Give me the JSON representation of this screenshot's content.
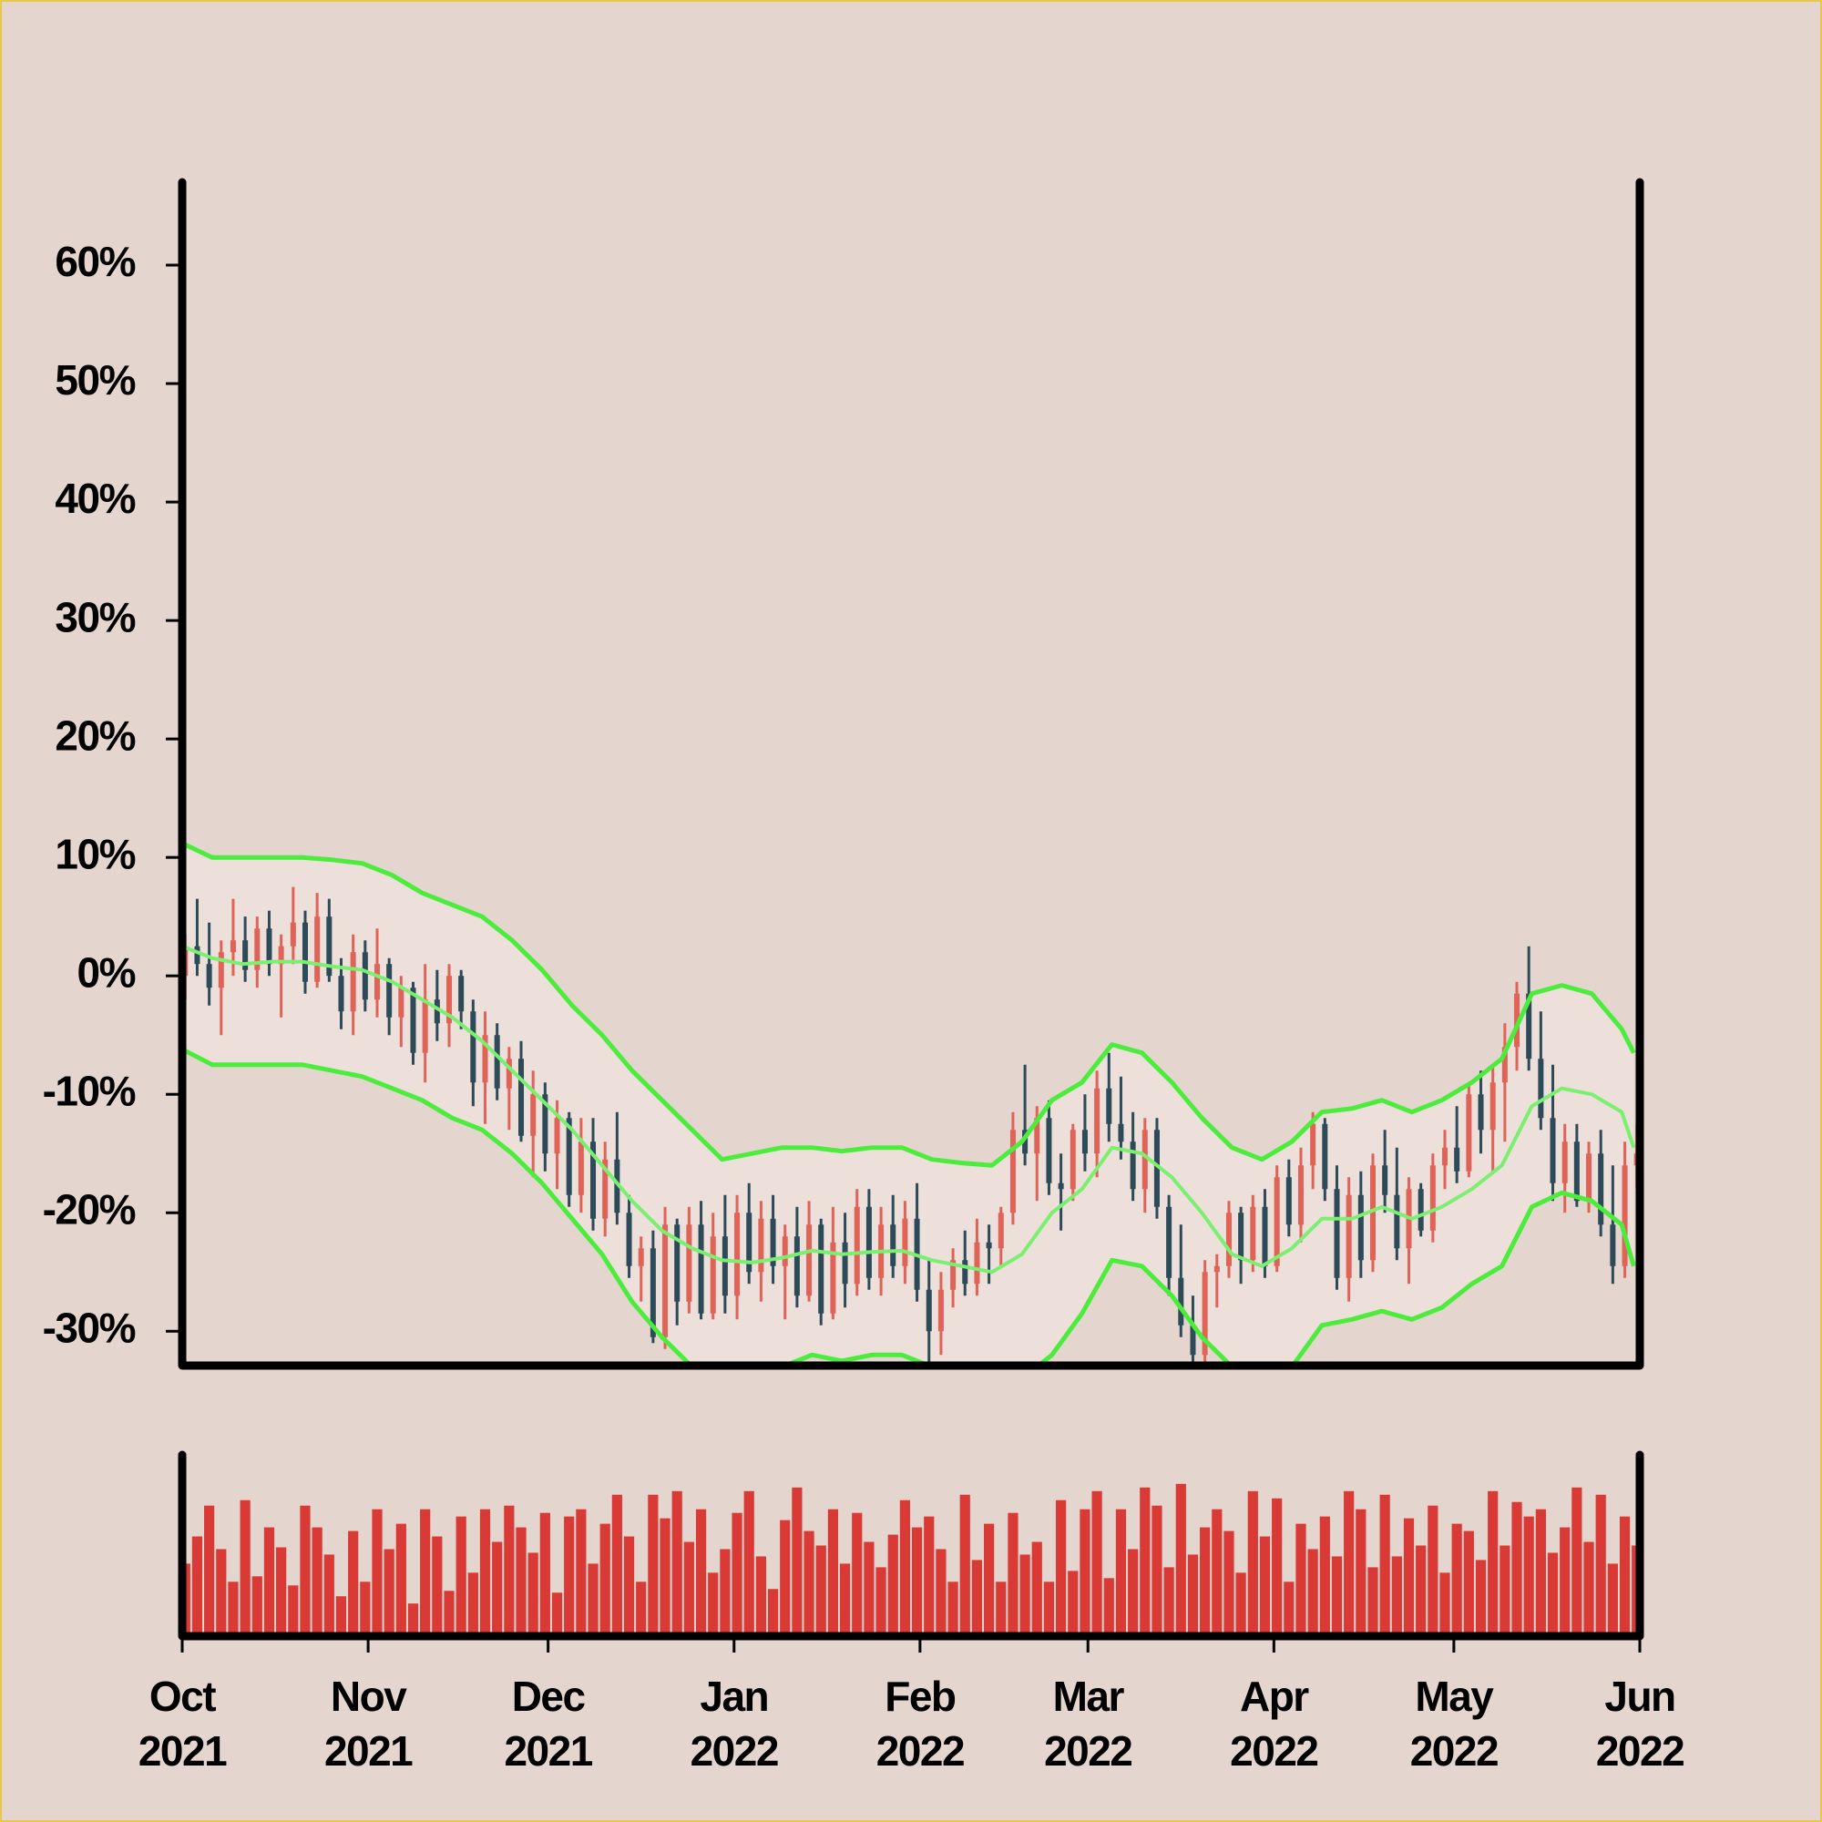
{
  "chart_data": {
    "type": "ohlc",
    "x": [
      "2021-10-01",
      "2021-10-03",
      "2021-10-05",
      "2021-10-07",
      "2021-10-09",
      "2021-10-11",
      "2021-10-13",
      "2021-10-15",
      "2021-10-17",
      "2021-10-19",
      "2021-10-21",
      "2021-10-23",
      "2021-10-25",
      "2021-10-27",
      "2021-10-29",
      "2021-10-31",
      "2021-11-02",
      "2021-11-04",
      "2021-11-06",
      "2021-11-08",
      "2021-11-10",
      "2021-11-12",
      "2021-11-14",
      "2021-11-16",
      "2021-11-18",
      "2021-11-20",
      "2021-11-22",
      "2021-11-24",
      "2021-11-26",
      "2021-11-28",
      "2021-11-30",
      "2021-12-02",
      "2021-12-04",
      "2021-12-06",
      "2021-12-08",
      "2021-12-10",
      "2021-12-12",
      "2021-12-14",
      "2021-12-16",
      "2021-12-18",
      "2021-12-20",
      "2021-12-22",
      "2021-12-24",
      "2021-12-26",
      "2021-12-28",
      "2021-12-30",
      "2022-01-01",
      "2022-01-03",
      "2022-01-05",
      "2022-01-07",
      "2022-01-09",
      "2022-01-11",
      "2022-01-13",
      "2022-01-15",
      "2022-01-17",
      "2022-01-19",
      "2022-01-21",
      "2022-01-23",
      "2022-01-25",
      "2022-01-27",
      "2022-01-29",
      "2022-01-31",
      "2022-02-02",
      "2022-02-04",
      "2022-02-06",
      "2022-02-08",
      "2022-02-10",
      "2022-02-12",
      "2022-02-14",
      "2022-02-16",
      "2022-02-18",
      "2022-02-20",
      "2022-02-22",
      "2022-02-24",
      "2022-02-26",
      "2022-02-28",
      "2022-03-02",
      "2022-03-04",
      "2022-03-06",
      "2022-03-08",
      "2022-03-10",
      "2022-03-12",
      "2022-03-14",
      "2022-03-16",
      "2022-03-18",
      "2022-03-20",
      "2022-03-22",
      "2022-03-24",
      "2022-03-26",
      "2022-03-28",
      "2022-03-30",
      "2022-04-01",
      "2022-04-03",
      "2022-04-05",
      "2022-04-07",
      "2022-04-09",
      "2022-04-11",
      "2022-04-13",
      "2022-04-15",
      "2022-04-17",
      "2022-04-19",
      "2022-04-21",
      "2022-04-23",
      "2022-04-25",
      "2022-04-27",
      "2022-04-29",
      "2022-05-01",
      "2022-05-03",
      "2022-05-05",
      "2022-05-07",
      "2022-05-09",
      "2022-05-11",
      "2022-05-13",
      "2022-05-15",
      "2022-05-17",
      "2022-05-19",
      "2022-05-21",
      "2022-05-23",
      "2022-05-25",
      "2022-05-27",
      "2022-05-29",
      "2022-05-31"
    ],
    "ohlc": [
      [
        0,
        3.5,
        -2,
        2.5
      ],
      [
        2.5,
        6.5,
        0,
        1
      ],
      [
        1,
        4.5,
        -2.5,
        -1
      ],
      [
        -1,
        3,
        -5,
        2
      ],
      [
        2,
        6.5,
        0,
        3
      ],
      [
        3,
        5,
        -0.5,
        0.5
      ],
      [
        0.5,
        5,
        -1,
        4
      ],
      [
        4,
        5.5,
        0,
        1
      ],
      [
        1,
        3.5,
        -3.5,
        2.5
      ],
      [
        2.5,
        7.5,
        1,
        4.5
      ],
      [
        4.5,
        5.5,
        -1.5,
        -0.5
      ],
      [
        -0.5,
        7,
        -1,
        5
      ],
      [
        5,
        6.5,
        -0.5,
        0
      ],
      [
        0,
        1.5,
        -4.5,
        -3
      ],
      [
        -3,
        3.5,
        -5,
        2
      ],
      [
        2,
        3,
        -3,
        -2
      ],
      [
        -2,
        4,
        -3.5,
        1
      ],
      [
        1,
        1.5,
        -5,
        -3.5
      ],
      [
        -3.5,
        0,
        -6,
        -1
      ],
      [
        -1,
        -0.5,
        -7.5,
        -6.5
      ],
      [
        -6.5,
        1,
        -9,
        -2
      ],
      [
        -2,
        0.5,
        -5.5,
        -4
      ],
      [
        -4,
        1,
        -6,
        0
      ],
      [
        0,
        0.5,
        -4.5,
        -3
      ],
      [
        -3,
        -2,
        -11,
        -9
      ],
      [
        -9,
        -3,
        -12.5,
        -5
      ],
      [
        -5,
        -4,
        -10.5,
        -9.5
      ],
      [
        -9.5,
        -6,
        -13,
        -7
      ],
      [
        -7,
        -5.5,
        -14,
        -13.5
      ],
      [
        -13.5,
        -8,
        -17,
        -10
      ],
      [
        -10,
        -9,
        -16.5,
        -15
      ],
      [
        -15,
        -10.5,
        -18,
        -12
      ],
      [
        -12,
        -11.5,
        -19.5,
        -18.5
      ],
      [
        -18.5,
        -12,
        -20,
        -14
      ],
      [
        -14,
        -12,
        -21.5,
        -20.5
      ],
      [
        -20.5,
        -14,
        -22,
        -15.5
      ],
      [
        -15.5,
        -11.5,
        -21,
        -20
      ],
      [
        -20,
        -18.5,
        -25.5,
        -24.5
      ],
      [
        -24.5,
        -22,
        -27.5,
        -23
      ],
      [
        -23,
        -21.5,
        -31,
        -30.5
      ],
      [
        -30.5,
        -19.5,
        -31.5,
        -21
      ],
      [
        -21,
        -20.5,
        -29.5,
        -27.5
      ],
      [
        -27.5,
        -19.5,
        -28.5,
        -21
      ],
      [
        -21,
        -19,
        -29,
        -28.5
      ],
      [
        -28.5,
        -20,
        -29,
        -22
      ],
      [
        -22,
        -18.5,
        -28.5,
        -27
      ],
      [
        -27,
        -18.5,
        -29,
        -20
      ],
      [
        -20,
        -17.5,
        -26,
        -25
      ],
      [
        -25,
        -19,
        -27.5,
        -20.5
      ],
      [
        -20.5,
        -18.5,
        -26,
        -24.5
      ],
      [
        -24.5,
        -21,
        -29,
        -22
      ],
      [
        -22,
        -19.5,
        -28,
        -27
      ],
      [
        -27,
        -19,
        -27.5,
        -21
      ],
      [
        -21,
        -20.5,
        -29.5,
        -28.5
      ],
      [
        -28.5,
        -19.5,
        -29,
        -22.5
      ],
      [
        -22.5,
        -20,
        -28,
        -26
      ],
      [
        -26,
        -18,
        -27,
        -19.5
      ],
      [
        -19.5,
        -18,
        -26.5,
        -25.5
      ],
      [
        -25.5,
        -19.5,
        -27,
        -21
      ],
      [
        -21,
        -18.5,
        -25.5,
        -24.5
      ],
      [
        -24.5,
        -19,
        -26,
        -20.5
      ],
      [
        -20.5,
        -17.5,
        -27.5,
        -26.5
      ],
      [
        -26.5,
        -24,
        -33,
        -30
      ],
      [
        -30,
        -25,
        -32,
        -26.5
      ],
      [
        -26.5,
        -23,
        -28,
        -24
      ],
      [
        -24,
        -21.5,
        -27,
        -26
      ],
      [
        -26,
        -20.5,
        -27,
        -22.5
      ],
      [
        -22.5,
        -21,
        -26,
        -23
      ],
      [
        -23,
        -19.5,
        -24.5,
        -20
      ],
      [
        -20,
        -11.5,
        -21,
        -13
      ],
      [
        -13,
        -7.5,
        -16,
        -15
      ],
      [
        -15,
        -11,
        -19,
        -12
      ],
      [
        -12,
        -10.5,
        -18.5,
        -17.5
      ],
      [
        -17.5,
        -15,
        -21.5,
        -18
      ],
      [
        -18,
        -12.5,
        -19,
        -13
      ],
      [
        -13,
        -10,
        -16.5,
        -15
      ],
      [
        -15,
        -8,
        -17,
        -9.5
      ],
      [
        -9.5,
        -6.5,
        -14,
        -12.5
      ],
      [
        -12.5,
        -8.5,
        -15.5,
        -14
      ],
      [
        -14,
        -11.5,
        -19,
        -18
      ],
      [
        -18,
        -12,
        -20,
        -13
      ],
      [
        -13,
        -12,
        -20.5,
        -19.5
      ],
      [
        -19.5,
        -18.5,
        -27,
        -25.5
      ],
      [
        -25.5,
        -21,
        -30.5,
        -29.5
      ],
      [
        -29.5,
        -27,
        -33.5,
        -32
      ],
      [
        -32,
        -24,
        -33.5,
        -25
      ],
      [
        -25,
        -23.5,
        -28,
        -24.5
      ],
      [
        -24.5,
        -19,
        -25.5,
        -20
      ],
      [
        -20,
        -19.5,
        -26,
        -24
      ],
      [
        -24,
        -18.5,
        -25,
        -19.5
      ],
      [
        -19.5,
        -18,
        -25.5,
        -24.5
      ],
      [
        -24.5,
        -16,
        -25,
        -17
      ],
      [
        -17,
        -15.5,
        -22,
        -21
      ],
      [
        -21,
        -14.5,
        -22.5,
        -16
      ],
      [
        -16,
        -11.5,
        -18,
        -12.5
      ],
      [
        -12.5,
        -12,
        -19,
        -18
      ],
      [
        -18,
        -16,
        -26.5,
        -25.5
      ],
      [
        -25.5,
        -17,
        -27.5,
        -18.5
      ],
      [
        -18.5,
        -16.5,
        -25.5,
        -24
      ],
      [
        -24,
        -15,
        -25,
        -16
      ],
      [
        -16,
        -13,
        -20,
        -18.5
      ],
      [
        -18.5,
        -14.5,
        -24,
        -23
      ],
      [
        -23,
        -17,
        -26,
        -18
      ],
      [
        -18,
        -17.5,
        -22,
        -21.5
      ],
      [
        -21.5,
        -15,
        -22.5,
        -16
      ],
      [
        -16,
        -13,
        -18,
        -14.5
      ],
      [
        -14.5,
        -11,
        -17.5,
        -16.5
      ],
      [
        -16.5,
        -9,
        -17,
        -10
      ],
      [
        -10,
        -8,
        -15,
        -13
      ],
      [
        -13,
        -7.5,
        -16.5,
        -9
      ],
      [
        -9,
        -4,
        -14,
        -6
      ],
      [
        -6,
        -0.5,
        -8,
        -1.5
      ],
      [
        -1.5,
        2.5,
        -8,
        -7
      ],
      [
        -7,
        -3,
        -13,
        -12
      ],
      [
        -12,
        -7.5,
        -19,
        -17.5
      ],
      [
        -17.5,
        -12.5,
        -20,
        -14
      ],
      [
        -14,
        -12.5,
        -19.5,
        -19
      ],
      [
        -19,
        -14,
        -20,
        -15
      ],
      [
        -15,
        -13,
        -22,
        -21
      ],
      [
        -21,
        -16,
        -26,
        -24.5
      ],
      [
        -24.5,
        -14,
        -25.5,
        -16
      ],
      [
        -16,
        -12.5,
        -18,
        -15
      ]
    ],
    "up_color": "#e06358",
    "down_color": "#2c4a58",
    "volume": [
      40,
      55,
      72,
      48,
      30,
      75,
      33,
      60,
      49,
      28,
      72,
      60,
      45,
      22,
      58,
      30,
      70,
      48,
      62,
      18,
      70,
      55,
      25,
      66,
      35,
      70,
      52,
      72,
      60,
      46,
      68,
      24,
      66,
      70,
      40,
      62,
      78,
      55,
      30,
      78,
      65,
      80,
      52,
      70,
      35,
      48,
      68,
      80,
      44,
      26,
      64,
      82,
      58,
      50,
      70,
      40,
      68,
      52,
      38,
      56,
      75,
      60,
      66,
      48,
      30,
      78,
      42,
      62,
      30,
      68,
      45,
      52,
      30,
      75,
      36,
      70,
      80,
      32,
      70,
      48,
      82,
      72,
      38,
      84,
      45,
      60,
      70,
      58,
      35,
      80,
      55,
      76,
      30,
      62,
      48,
      66,
      44,
      80,
      70,
      38,
      78,
      44,
      65,
      50,
      72,
      35,
      62,
      58,
      42,
      80,
      50,
      74,
      66,
      70,
      46,
      60,
      82,
      52,
      78,
      40,
      66,
      50
    ],
    "volume_color": "#d93a35",
    "volume_ylim": [
      0,
      100
    ],
    "bands": {
      "x": [
        "2021-10-01",
        "2021-10-06",
        "2021-10-11",
        "2021-10-16",
        "2021-10-21",
        "2021-10-26",
        "2021-10-31",
        "2021-11-05",
        "2021-11-10",
        "2021-11-15",
        "2021-11-20",
        "2021-11-25",
        "2021-11-30",
        "2021-12-05",
        "2021-12-10",
        "2021-12-15",
        "2021-12-20",
        "2021-12-25",
        "2021-12-30",
        "2022-01-04",
        "2022-01-09",
        "2022-01-14",
        "2022-01-19",
        "2022-01-24",
        "2022-01-29",
        "2022-02-03",
        "2022-02-08",
        "2022-02-13",
        "2022-02-18",
        "2022-02-23",
        "2022-02-28",
        "2022-03-05",
        "2022-03-10",
        "2022-03-15",
        "2022-03-20",
        "2022-03-25",
        "2022-03-30",
        "2022-04-04",
        "2022-04-09",
        "2022-04-14",
        "2022-04-19",
        "2022-04-24",
        "2022-04-29",
        "2022-05-04",
        "2022-05-09",
        "2022-05-14",
        "2022-05-19",
        "2022-05-24",
        "2022-05-29",
        "2022-05-31"
      ],
      "upper": [
        11.2,
        10,
        10,
        10,
        10,
        9.8,
        9.5,
        8.5,
        7,
        6,
        5,
        3,
        0.5,
        -2.5,
        -5,
        -8,
        -10.5,
        -13,
        -15.5,
        -15,
        -14.5,
        -14.5,
        -14.8,
        -14.5,
        -14.5,
        -15.5,
        -15.8,
        -16,
        -14,
        -10.5,
        -9,
        -5.8,
        -6.5,
        -9,
        -12,
        -14.5,
        -15.5,
        -14,
        -11.5,
        -11.2,
        -10.5,
        -11.5,
        -10.5,
        -9,
        -7,
        -1.5,
        -0.8,
        -1.5,
        -4.5,
        -6.5
      ],
      "middle": [
        2.5,
        1.5,
        1,
        1.2,
        1.2,
        0.8,
        0.5,
        -0.5,
        -2,
        -3.5,
        -5.5,
        -8,
        -10.5,
        -13,
        -16,
        -19,
        -21.5,
        -23,
        -24,
        -24.2,
        -23.8,
        -23.2,
        -23.5,
        -23.3,
        -23.2,
        -24,
        -24.5,
        -25,
        -23.5,
        -20,
        -18,
        -14.5,
        -15,
        -17,
        -20,
        -23.5,
        -24.5,
        -23,
        -20.5,
        -20.5,
        -19.5,
        -20.5,
        -19.5,
        -18,
        -16,
        -11,
        -9.5,
        -10,
        -11.5,
        -14.5
      ],
      "lower": [
        -6.2,
        -7.5,
        -7.5,
        -7.5,
        -7.5,
        -8,
        -8.5,
        -9.5,
        -10.5,
        -12,
        -13,
        -15,
        -17.5,
        -20.5,
        -23.5,
        -27.5,
        -30.5,
        -33,
        -34,
        -33.5,
        -33,
        -32,
        -32.5,
        -32,
        -32,
        -33,
        -34.5,
        -35.5,
        -34,
        -32,
        -28.5,
        -24,
        -24.5,
        -27,
        -30.5,
        -33,
        -34,
        -33,
        -29.5,
        -29,
        -28.3,
        -29,
        -28,
        -26,
        -24.5,
        -19.5,
        -18.3,
        -19,
        -21,
        -24.5
      ],
      "color": "#4cec3c",
      "middle_color": "#7bef70"
    },
    "xlim": [
      "2021-10-01",
      "2022-06-01"
    ],
    "ylim": [
      -32.9,
      67
    ],
    "yticks": [
      {
        "value": -30,
        "label": "-30%"
      },
      {
        "value": -20,
        "label": "-20%"
      },
      {
        "value": -10,
        "label": "-10%"
      },
      {
        "value": 0,
        "label": "0%"
      },
      {
        "value": 10,
        "label": "10%"
      },
      {
        "value": 20,
        "label": "20%"
      },
      {
        "value": 30,
        "label": "30%"
      },
      {
        "value": 40,
        "label": "40%"
      },
      {
        "value": 50,
        "label": "50%"
      },
      {
        "value": 60,
        "label": "60%"
      }
    ],
    "xticks": [
      {
        "value": "2021-10-01",
        "label": "Oct 2021"
      },
      {
        "value": "2021-11-01",
        "label": "Nov 2021"
      },
      {
        "value": "2021-12-01",
        "label": "Dec 2021"
      },
      {
        "value": "2022-01-01",
        "label": "Jan 2022"
      },
      {
        "value": "2022-02-01",
        "label": "Feb 2022"
      },
      {
        "value": "2022-03-01",
        "label": "Mar 2022"
      },
      {
        "value": "2022-04-01",
        "label": "Apr 2022"
      },
      {
        "value": "2022-05-01",
        "label": "May 2022"
      },
      {
        "value": "2022-06-01",
        "label": "Jun 2022"
      }
    ]
  }
}
